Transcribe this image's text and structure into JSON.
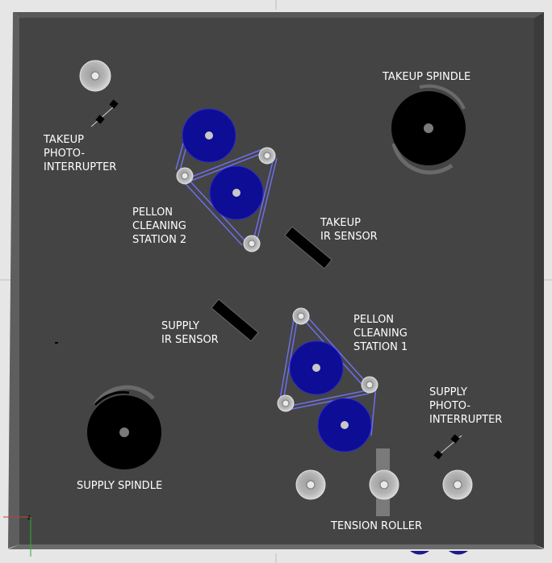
{
  "labels": {
    "takeup_spindle": "TAKEUP SPINDLE",
    "takeup_photo": [
      "TAKEUP",
      "PHOTO-",
      "INTERRUPTER"
    ],
    "pellon2": [
      "PELLON",
      "CLEANING",
      "STATION 2"
    ],
    "takeup_ir": [
      "TAKEUP",
      "IR SENSOR"
    ],
    "supply_ir": [
      "SUPPLY",
      "IR SENSOR"
    ],
    "pellon1": [
      "PELLON",
      "CLEANING",
      "STATION 1"
    ],
    "supply_photo": [
      "SUPPLY",
      "PHOTO-",
      "INTERRUPTER"
    ],
    "supply_spindle": "SUPPLY SPINDLE",
    "tension_roller": "TENSION ROLLER"
  },
  "colors": {
    "panel": "#444444",
    "pellon_roller": "#0d0d96",
    "belt": "#6e6ee8",
    "spindle": "#000000",
    "idler": "#c8c8c8",
    "sensor": "#000000"
  }
}
